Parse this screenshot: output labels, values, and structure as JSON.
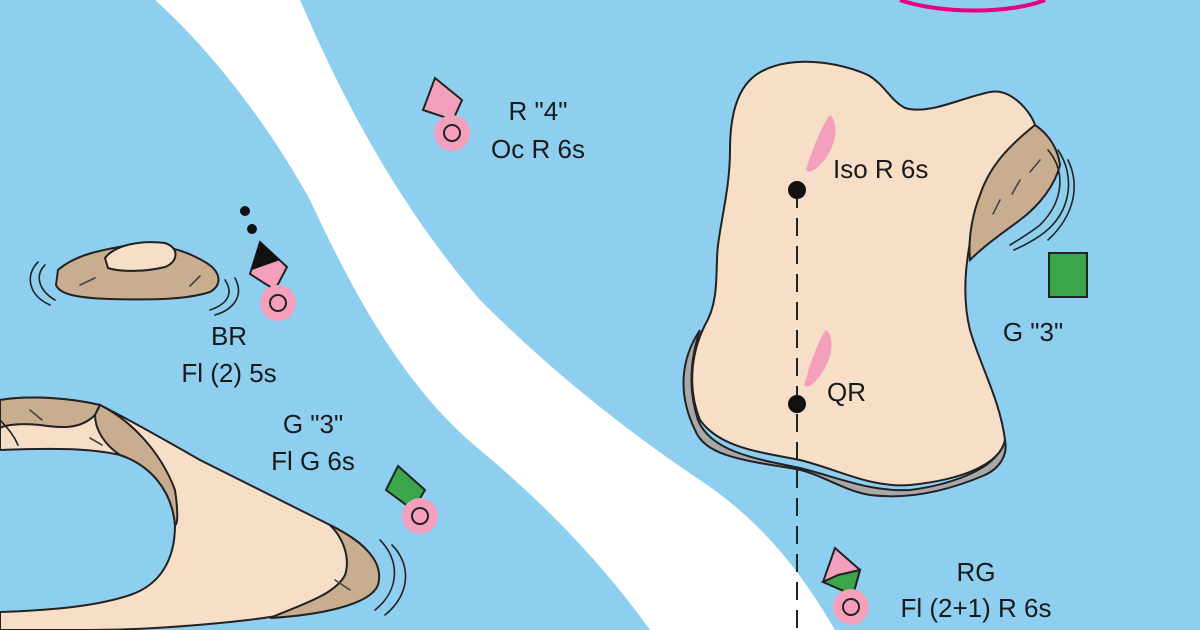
{
  "colors": {
    "water": "#8ecff0",
    "channel": "#ffffff",
    "land": "#f6dfc6",
    "rock": "#c8ad8f",
    "shadow": "#a8a8a8",
    "red_buoy": "#f4a0bc",
    "red_ring": "#f4a0bc",
    "green": "#3aa64a",
    "light_flare": "#f4a0bc",
    "black": "#111111",
    "magenta": "#e6007e"
  },
  "buoys": {
    "r4": {
      "name": "R \"4\"",
      "light": "Oc R 6s",
      "icon": "red-diamond-buoy-icon"
    },
    "br": {
      "name": "BR",
      "light": "Fl (2) 5s",
      "icon": "isolated-danger-buoy-icon"
    },
    "g3_buoy": {
      "name": "G \"3\"",
      "light": "Fl G 6s",
      "icon": "green-diamond-buoy-icon"
    },
    "rg": {
      "name": "RG",
      "light": "Fl (2+1) R 6s",
      "icon": "preferred-channel-buoy-icon"
    }
  },
  "lights": {
    "iso": {
      "label": "Iso R 6s",
      "icon": "light-flare-icon"
    },
    "qr": {
      "label": "QR",
      "icon": "light-flare-icon"
    }
  },
  "daybeacon": {
    "label": "G \"3\"",
    "icon": "green-square-daybeacon-icon"
  }
}
